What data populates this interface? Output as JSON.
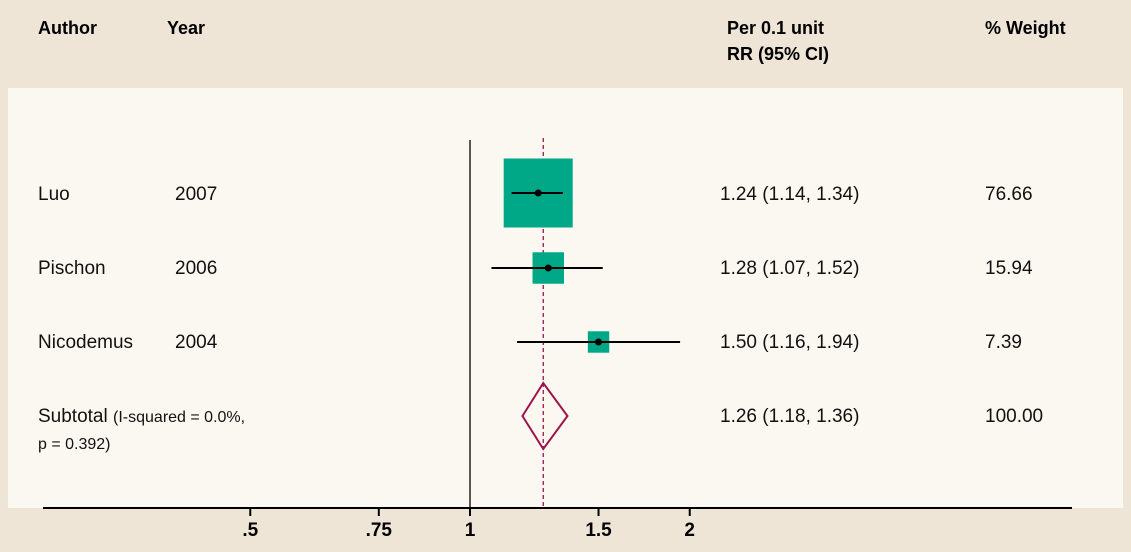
{
  "header": {
    "author": "Author",
    "year": "Year",
    "effect_line1": "Per 0.1 unit",
    "effect_line2": "RR (95% CI)",
    "weight": "% Weight"
  },
  "rows": [
    {
      "author": "Luo",
      "year": "2007",
      "ci_text": "1.24 (1.14, 1.34)",
      "weight_text": "76.66"
    },
    {
      "author": "Pischon",
      "year": "2006",
      "ci_text": "1.28 (1.07, 1.52)",
      "weight_text": "15.94"
    },
    {
      "author": "Nicodemus",
      "year": "2004",
      "ci_text": "1.50 (1.16, 1.94)",
      "weight_text": "7.39"
    }
  ],
  "subtotal": {
    "label": "Subtotal",
    "note_line1": "(I-squared = 0.0%,",
    "note_line2": "p = 0.392)",
    "ci_text": "1.26 (1.18, 1.36)",
    "weight_text": "100.00"
  },
  "chart_data": {
    "type": "forest",
    "scale": "log",
    "x_ticks": [
      0.5,
      0.75,
      1,
      1.5,
      2
    ],
    "x_tick_labels": [
      ".5",
      ".75",
      "1",
      "1.5",
      "2"
    ],
    "reference_line": 1,
    "pooled_estimate_line": 1.26,
    "studies": [
      {
        "author": "Luo",
        "year": 2007,
        "rr": 1.24,
        "lower": 1.14,
        "upper": 1.34,
        "weight": 76.66
      },
      {
        "author": "Pischon",
        "year": 2006,
        "rr": 1.28,
        "lower": 1.07,
        "upper": 1.52,
        "weight": 15.94
      },
      {
        "author": "Nicodemus",
        "year": 2004,
        "rr": 1.5,
        "lower": 1.16,
        "upper": 1.94,
        "weight": 7.39
      }
    ],
    "pooled": {
      "rr": 1.26,
      "lower": 1.18,
      "upper": 1.36,
      "weight": 100.0
    },
    "colors": {
      "box": "#00a887",
      "diamond": "#a0124b",
      "line": "#000000",
      "pooled_line": "#a0124b"
    }
  }
}
